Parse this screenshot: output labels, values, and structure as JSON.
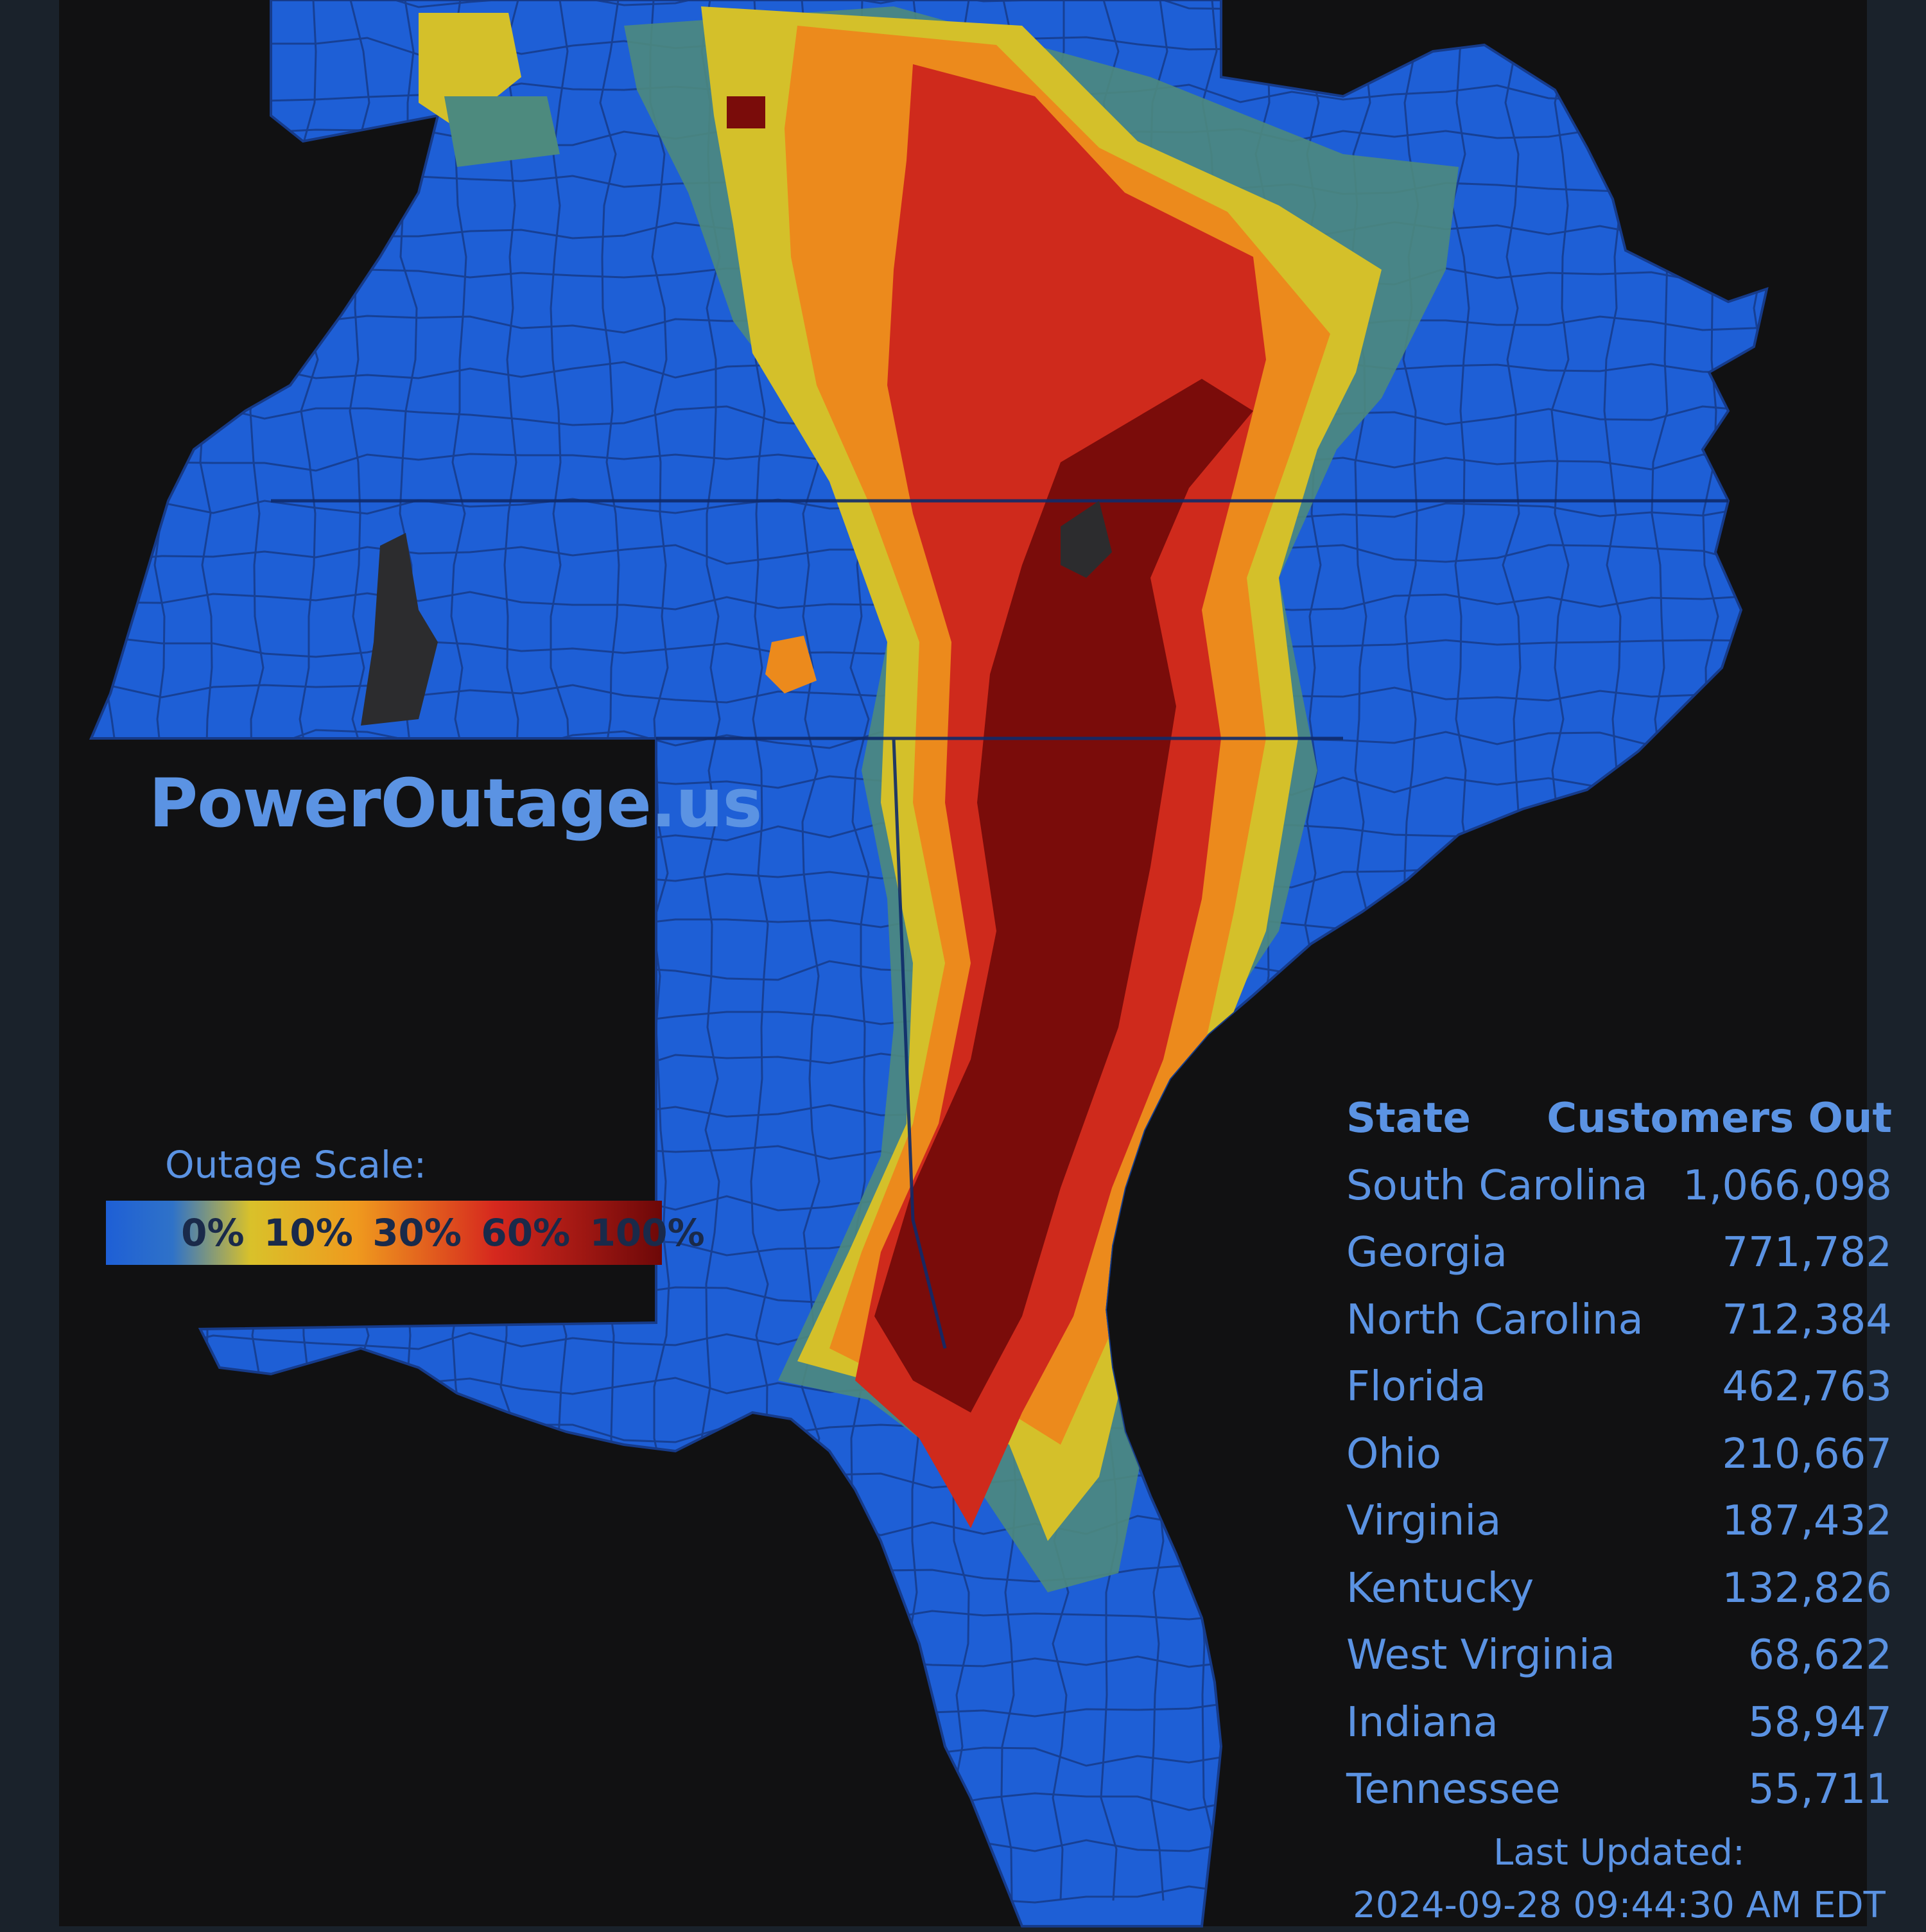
{
  "brand": "PowerOutage.us",
  "legend": {
    "title": "Outage Scale:",
    "ticks": [
      "0%",
      "10%",
      "30%",
      "60%",
      "100%"
    ],
    "colors": [
      "#1e5fd6",
      "#d9c12a",
      "#ef9a1e",
      "#d6281e",
      "#6d0808"
    ]
  },
  "map": {
    "land_color": "#1e5fd6",
    "border_color": "#163b8a",
    "background_color": "#111112"
  },
  "table": {
    "header": {
      "state": "State",
      "customers": "Customers Out"
    },
    "rows": [
      {
        "state": "South Carolina",
        "customers": "1,066,098"
      },
      {
        "state": "Georgia",
        "customers": "771,782"
      },
      {
        "state": "North Carolina",
        "customers": "712,384"
      },
      {
        "state": "Florida",
        "customers": "462,763"
      },
      {
        "state": "Ohio",
        "customers": "210,667"
      },
      {
        "state": "Virginia",
        "customers": "187,432"
      },
      {
        "state": "Kentucky",
        "customers": "132,826"
      },
      {
        "state": "West Virginia",
        "customers": "68,622"
      },
      {
        "state": "Indiana",
        "customers": "58,947"
      },
      {
        "state": "Tennessee",
        "customers": "55,711"
      }
    ]
  },
  "updated": {
    "label": "Last Updated:",
    "timestamp": "2024-09-28 09:44:30 AM EDT"
  }
}
